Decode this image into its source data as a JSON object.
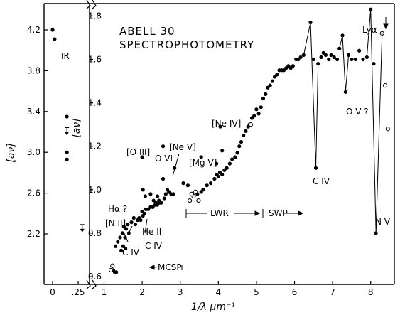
{
  "chart_data": {
    "type": "scatter",
    "title": [
      "ABELL 30",
      "SPECTROPHOTOMETRY"
    ],
    "xlabel": "1/λ  μm⁻¹",
    "ylabel": "[aν]",
    "main_panel": {
      "xlim": [
        1,
        8.5
      ],
      "ylim": [
        0.56,
        1.9
      ],
      "xticks": [
        "1",
        "2",
        "3",
        "4",
        "5",
        "6",
        "7",
        "8"
      ],
      "yticks": [
        "0.6",
        "0.8",
        "1.0",
        "1.2",
        "1.4",
        "1.6",
        "1.8"
      ],
      "series": [
        {
          "name": "filled",
          "marker": "filled",
          "points": [
            [
              1.24,
              0.63
            ],
            [
              1.28,
              0.62
            ],
            [
              1.32,
              0.62
            ],
            [
              1.3,
              0.74
            ],
            [
              1.36,
              0.76
            ],
            [
              1.42,
              0.78
            ],
            [
              1.48,
              0.8
            ],
            [
              1.52,
              0.83
            ],
            [
              1.58,
              0.82
            ],
            [
              1.62,
              0.84
            ],
            [
              1.55,
              0.78
            ],
            [
              1.45,
              0.72
            ],
            [
              1.5,
              0.74
            ],
            [
              1.56,
              0.73
            ],
            [
              1.65,
              0.8
            ],
            [
              1.72,
              0.85
            ],
            [
              1.78,
              0.87
            ],
            [
              1.82,
              0.84
            ],
            [
              1.88,
              0.86
            ],
            [
              1.92,
              0.87
            ],
            [
              1.96,
              0.86
            ],
            [
              2.0,
              0.9
            ],
            [
              2.02,
              0.88
            ],
            [
              2.06,
              0.89
            ],
            [
              2.1,
              0.91
            ],
            [
              2.16,
              0.91
            ],
            [
              2.22,
              0.92
            ],
            [
              2.28,
              0.92
            ],
            [
              2.34,
              0.93
            ],
            [
              2.4,
              0.93
            ],
            [
              2.46,
              0.94
            ],
            [
              2.5,
              0.94
            ],
            [
              2.3,
              0.95
            ],
            [
              2.36,
              0.94
            ],
            [
              2.44,
              0.95
            ],
            [
              2.22,
              0.98
            ],
            [
              2.02,
              1.0
            ],
            [
              2.08,
              0.97
            ],
            [
              2.4,
              0.97
            ],
            [
              2.58,
              0.96
            ],
            [
              2.62,
              0.98
            ],
            [
              2.66,
              1.0
            ],
            [
              2.7,
              0.99
            ],
            [
              2.76,
              0.98
            ],
            [
              2.82,
              0.98
            ],
            [
              2.55,
              1.05
            ],
            [
              2.85,
              1.1
            ],
            [
              2.0,
              1.15
            ],
            [
              2.55,
              1.2
            ],
            [
              3.08,
              1.03
            ],
            [
              3.2,
              1.02
            ],
            [
              3.45,
              0.98
            ],
            [
              3.55,
              0.99
            ],
            [
              3.6,
              1.0
            ],
            [
              3.7,
              1.02
            ],
            [
              3.8,
              1.03
            ],
            [
              3.9,
              1.05
            ],
            [
              3.96,
              1.07
            ],
            [
              4.0,
              1.06
            ],
            [
              4.04,
              1.08
            ],
            [
              4.1,
              1.07
            ],
            [
              4.16,
              1.09
            ],
            [
              4.22,
              1.1
            ],
            [
              4.3,
              1.12
            ],
            [
              4.36,
              1.14
            ],
            [
              4.44,
              1.15
            ],
            [
              4.5,
              1.17
            ],
            [
              4.55,
              1.2
            ],
            [
              4.6,
              1.22
            ],
            [
              4.66,
              1.25
            ],
            [
              4.72,
              1.27
            ],
            [
              4.78,
              1.29
            ],
            [
              4.82,
              1.3
            ],
            [
              4.88,
              1.33
            ],
            [
              4.94,
              1.34
            ],
            [
              5.0,
              1.37
            ],
            [
              5.06,
              1.35
            ],
            [
              5.12,
              1.38
            ],
            [
              5.18,
              1.42
            ],
            [
              5.24,
              1.44
            ],
            [
              5.3,
              1.47
            ],
            [
              5.36,
              1.48
            ],
            [
              5.42,
              1.5
            ],
            [
              5.48,
              1.52
            ],
            [
              5.54,
              1.53
            ],
            [
              5.6,
              1.55
            ],
            [
              5.66,
              1.55
            ],
            [
              5.72,
              1.55
            ],
            [
              5.78,
              1.56
            ],
            [
              5.84,
              1.57
            ],
            [
              5.9,
              1.56
            ],
            [
              5.96,
              1.57
            ],
            [
              6.04,
              1.6
            ],
            [
              6.1,
              1.6
            ],
            [
              6.16,
              1.61
            ],
            [
              6.24,
              1.62
            ],
            [
              6.42,
              1.77
            ],
            [
              6.5,
              1.6
            ],
            [
              6.56,
              1.1
            ],
            [
              6.62,
              1.58
            ],
            [
              6.7,
              1.61
            ],
            [
              6.76,
              1.63
            ],
            [
              6.82,
              1.62
            ],
            [
              6.9,
              1.6
            ],
            [
              6.96,
              1.62
            ],
            [
              7.04,
              1.61
            ],
            [
              7.12,
              1.6
            ],
            [
              7.18,
              1.65
            ],
            [
              7.26,
              1.71
            ],
            [
              7.34,
              1.45
            ],
            [
              7.42,
              1.62
            ],
            [
              7.5,
              1.6
            ],
            [
              7.6,
              1.6
            ],
            [
              7.7,
              1.64
            ],
            [
              7.8,
              1.6
            ],
            [
              7.9,
              1.61
            ],
            [
              8.0,
              1.83
            ],
            [
              8.08,
              1.58
            ],
            [
              8.14,
              0.8
            ],
            [
              4.05,
              1.29
            ],
            [
              3.55,
              1.15
            ],
            [
              4.1,
              1.18
            ],
            [
              3.95,
              1.12
            ]
          ]
        },
        {
          "name": "open",
          "marker": "open",
          "points": [
            [
              1.22,
              0.65
            ],
            [
              1.18,
              0.63
            ],
            [
              3.25,
              0.95
            ],
            [
              3.35,
              0.97
            ],
            [
              3.4,
              0.99
            ],
            [
              3.48,
              0.95
            ],
            [
              3.3,
              0.98
            ],
            [
              4.85,
              1.3
            ],
            [
              8.3,
              1.72
            ],
            [
              8.38,
              1.48
            ],
            [
              8.45,
              1.28
            ]
          ]
        }
      ]
    },
    "ir_panel": {
      "xlim": [
        -0.05,
        0.33
      ],
      "ylim": [
        1.78,
        4.35
      ],
      "xticks": [
        "0",
        ".25"
      ],
      "yticks": [
        "2.2",
        "2.6",
        "3.0",
        "3.4",
        "3.8",
        "4.2"
      ],
      "points": [
        [
          0.0,
          4.2
        ],
        [
          0.02,
          4.11
        ],
        [
          0.14,
          3.35
        ],
        [
          0.14,
          3.0
        ],
        [
          0.14,
          2.93
        ]
      ],
      "upper_limits": [
        [
          0.14,
          3.2
        ],
        [
          0.29,
          2.25
        ]
      ],
      "label": "IR"
    },
    "annotations": [
      "Hα ?",
      "[N II]",
      "C IV",
      "C IV",
      "He II",
      "[O III]",
      "O VI",
      "[Ne V]",
      "[Mg V]",
      "[Ne IV]",
      "C IV",
      "O V ?",
      "N V",
      "Lyα",
      "MCSP",
      "LWR",
      "SWP"
    ]
  }
}
